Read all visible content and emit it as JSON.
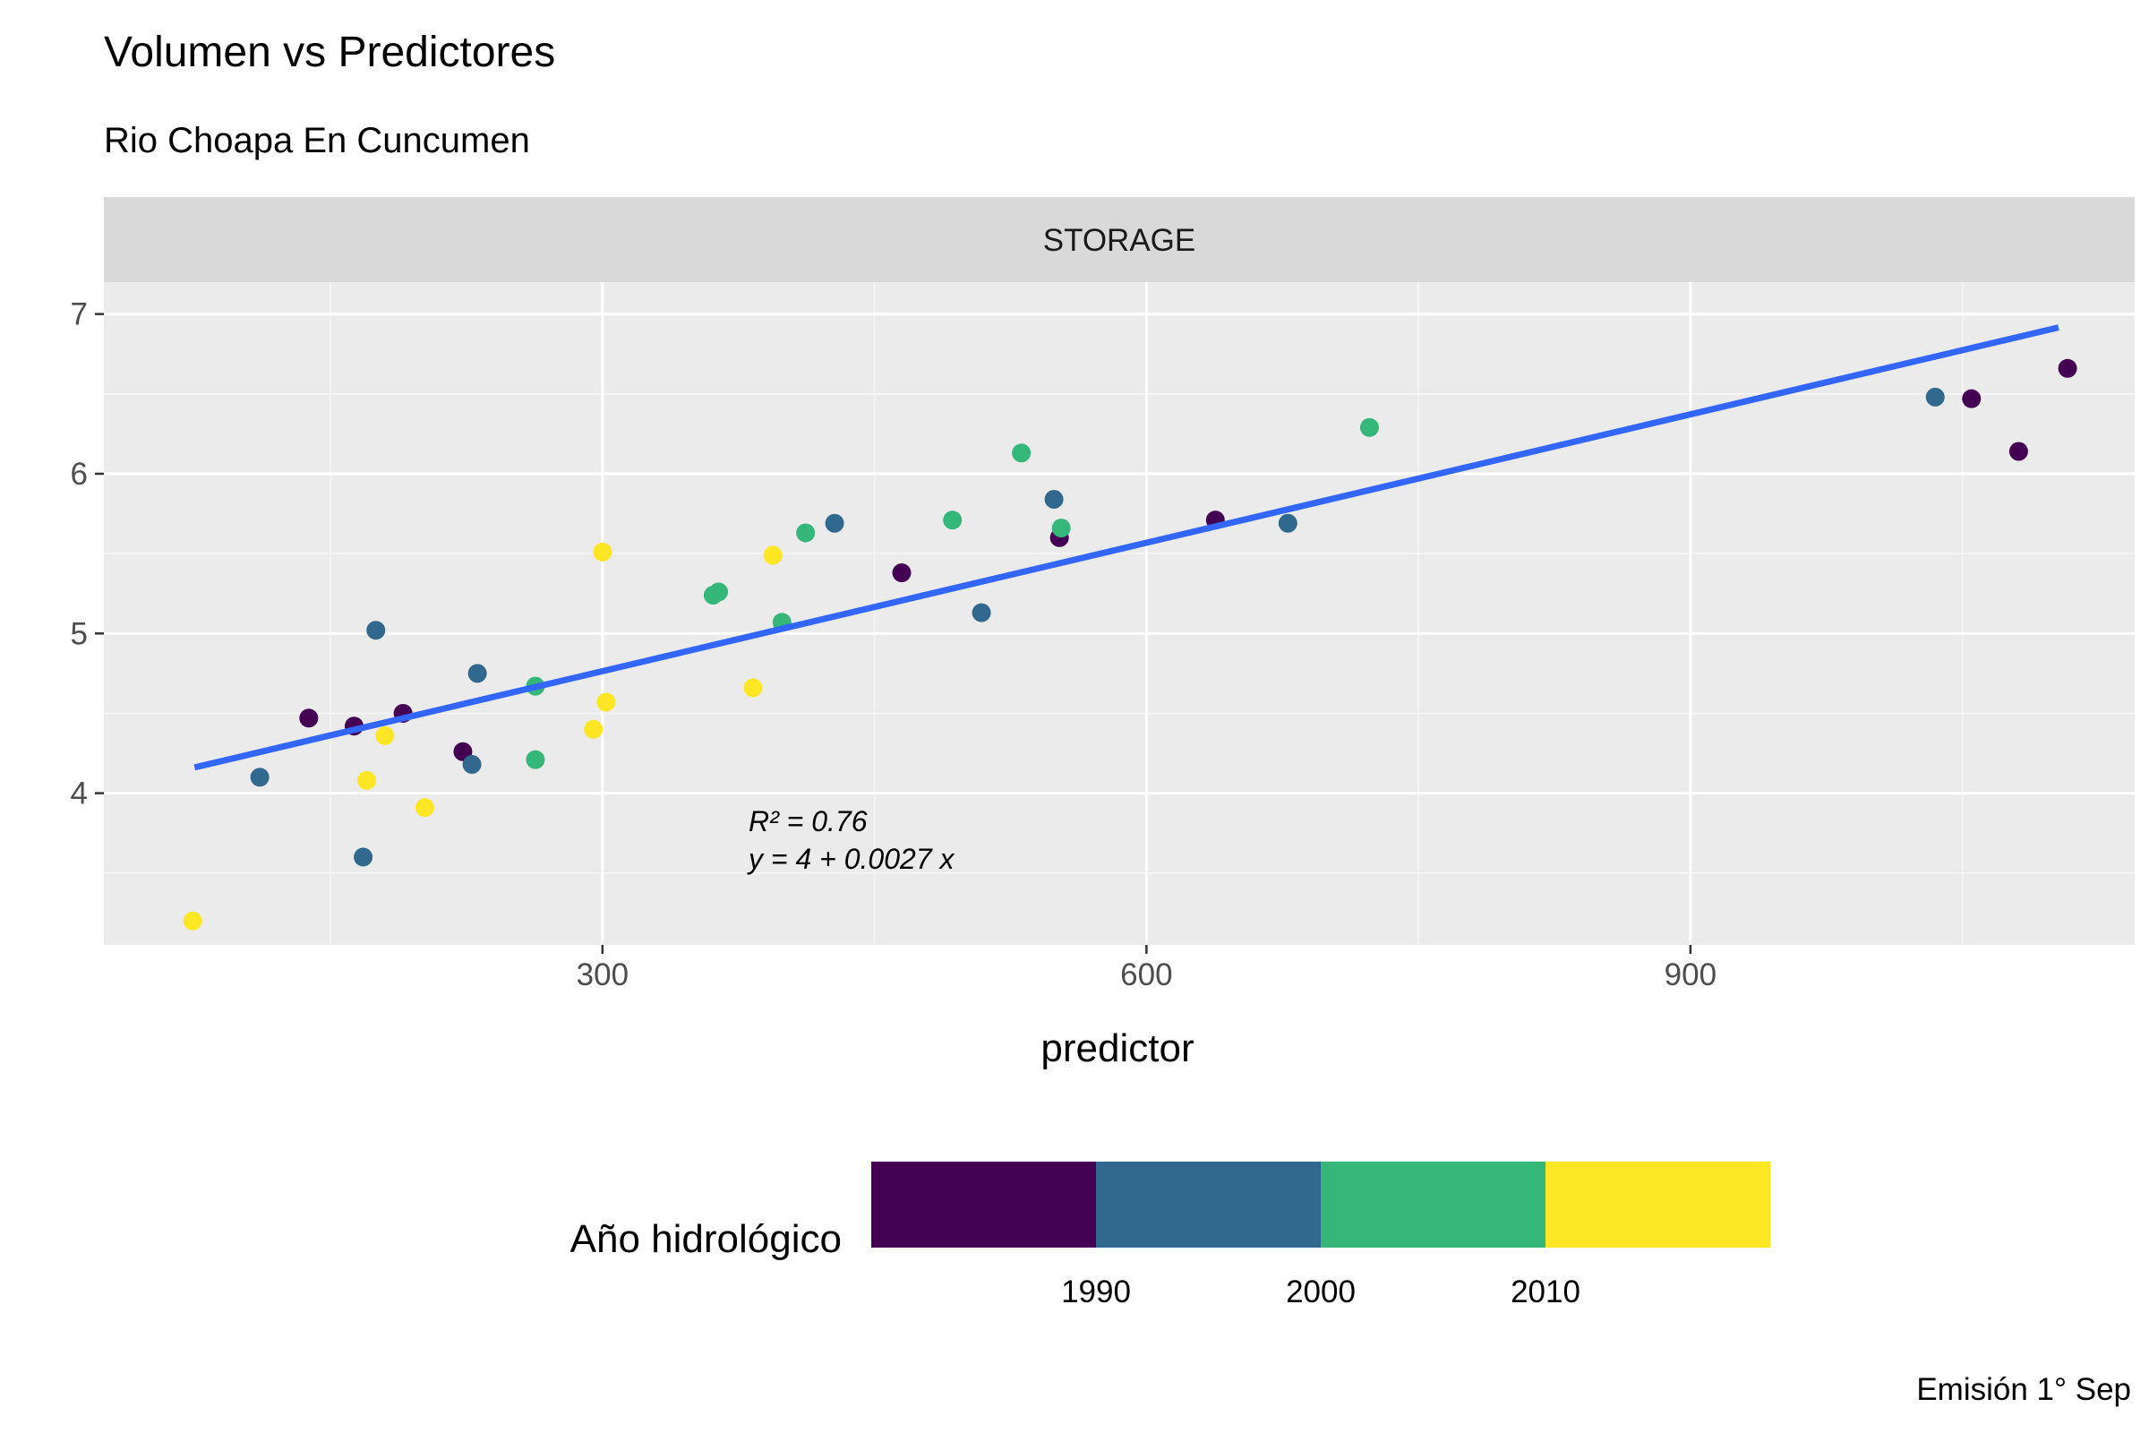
{
  "title": "Volumen vs Predictores",
  "subtitle": "Rio Choapa En Cuncumen",
  "caption": "Emisión 1° Sep",
  "chart_data": {
    "type": "scatter",
    "facet_label": "STORAGE",
    "xlabel": "predictor",
    "ylabel": "",
    "xlim": [
      25,
      1145
    ],
    "ylim": [
      3.05,
      7.2
    ],
    "x_ticks": [
      300,
      600,
      900
    ],
    "y_ticks": [
      4,
      5,
      6,
      7
    ],
    "grid": true,
    "legend": {
      "title": "Año hidrológico",
      "position": "bottom",
      "breaks": [
        1990,
        2000,
        2010
      ],
      "bins": [
        {
          "upper": 1990,
          "color": "#440154"
        },
        {
          "upper": 2000,
          "color": "#31688E"
        },
        {
          "upper": 2010,
          "color": "#35B779"
        },
        {
          "upper": 2020,
          "color": "#FDE725"
        }
      ]
    },
    "fit_line": {
      "color": "#3366FF",
      "intercept": 3.96,
      "slope": 0.00268,
      "x_range": [
        75,
        1103
      ]
    },
    "annotation": {
      "r2": "R² = 0.76",
      "equation": "y = 4 + 0.0027 x"
    },
    "points": [
      {
        "x": 74,
        "y": 3.2,
        "color": "#FDE725"
      },
      {
        "x": 111,
        "y": 4.1,
        "color": "#31688E"
      },
      {
        "x": 138,
        "y": 4.47,
        "color": "#440154"
      },
      {
        "x": 163,
        "y": 4.42,
        "color": "#440154"
      },
      {
        "x": 168,
        "y": 3.6,
        "color": "#31688E"
      },
      {
        "x": 170,
        "y": 4.08,
        "color": "#FDE725"
      },
      {
        "x": 175,
        "y": 5.02,
        "color": "#31688E"
      },
      {
        "x": 180,
        "y": 4.36,
        "color": "#FDE725"
      },
      {
        "x": 190,
        "y": 4.5,
        "color": "#440154"
      },
      {
        "x": 202,
        "y": 3.91,
        "color": "#FDE725"
      },
      {
        "x": 223,
        "y": 4.26,
        "color": "#440154"
      },
      {
        "x": 228,
        "y": 4.18,
        "color": "#31688E"
      },
      {
        "x": 231,
        "y": 4.75,
        "color": "#31688E"
      },
      {
        "x": 263,
        "y": 4.67,
        "color": "#35B779"
      },
      {
        "x": 263,
        "y": 4.21,
        "color": "#35B779"
      },
      {
        "x": 295,
        "y": 4.4,
        "color": "#FDE725"
      },
      {
        "x": 300,
        "y": 5.51,
        "color": "#FDE725"
      },
      {
        "x": 302,
        "y": 4.57,
        "color": "#FDE725"
      },
      {
        "x": 361,
        "y": 5.24,
        "color": "#35B779"
      },
      {
        "x": 364,
        "y": 5.26,
        "color": "#35B779"
      },
      {
        "x": 383,
        "y": 4.66,
        "color": "#FDE725"
      },
      {
        "x": 394,
        "y": 5.49,
        "color": "#FDE725"
      },
      {
        "x": 399,
        "y": 5.07,
        "color": "#35B779"
      },
      {
        "x": 412,
        "y": 5.63,
        "color": "#35B779"
      },
      {
        "x": 428,
        "y": 5.69,
        "color": "#31688E"
      },
      {
        "x": 465,
        "y": 5.38,
        "color": "#440154"
      },
      {
        "x": 493,
        "y": 5.71,
        "color": "#35B779"
      },
      {
        "x": 509,
        "y": 5.13,
        "color": "#31688E"
      },
      {
        "x": 531,
        "y": 6.13,
        "color": "#35B779"
      },
      {
        "x": 549,
        "y": 5.84,
        "color": "#31688E"
      },
      {
        "x": 552,
        "y": 5.6,
        "color": "#440154"
      },
      {
        "x": 553,
        "y": 5.66,
        "color": "#35B779"
      },
      {
        "x": 638,
        "y": 5.71,
        "color": "#440154"
      },
      {
        "x": 678,
        "y": 5.69,
        "color": "#31688E"
      },
      {
        "x": 723,
        "y": 6.29,
        "color": "#35B779"
      },
      {
        "x": 1035,
        "y": 6.48,
        "color": "#31688E"
      },
      {
        "x": 1055,
        "y": 6.47,
        "color": "#440154"
      },
      {
        "x": 1081,
        "y": 6.14,
        "color": "#440154"
      },
      {
        "x": 1108,
        "y": 6.66,
        "color": "#440154"
      }
    ]
  }
}
